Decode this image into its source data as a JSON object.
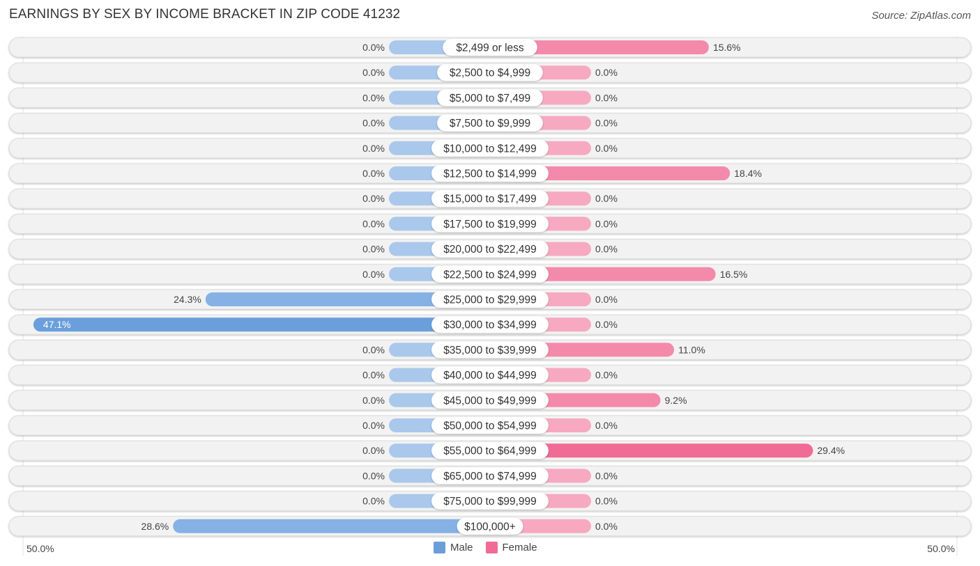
{
  "header": {
    "title": "EARNINGS BY SEX BY INCOME BRACKET IN ZIP CODE 41232",
    "source": "Source: ZipAtlas.com"
  },
  "axis": {
    "left_label": "50.0%",
    "right_label": "50.0%"
  },
  "legend": [
    {
      "label": "Male",
      "color": "#6a9fdb"
    },
    {
      "label": "Female",
      "color": "#f06b95"
    }
  ],
  "colors": {
    "male_light": "#a9c8eb",
    "male_dark": "#6a9fdb",
    "female_light": "#f7a9c2",
    "female_dark": "#f06b95",
    "row_bg": "#f2f2f2"
  },
  "chart_data": {
    "type": "bar",
    "orientation": "horizontal-diverging",
    "title": "EARNINGS BY SEX BY INCOME BRACKET IN ZIP CODE 41232",
    "xlim": [
      -50,
      50
    ],
    "x_tick_labels": [
      "50.0%",
      "50.0%"
    ],
    "legend_position": "bottom-center",
    "categories": [
      "$2,499 or less",
      "$2,500 to $4,999",
      "$5,000 to $7,499",
      "$7,500 to $9,999",
      "$10,000 to $12,499",
      "$12,500 to $14,999",
      "$15,000 to $17,499",
      "$17,500 to $19,999",
      "$20,000 to $22,499",
      "$22,500 to $24,999",
      "$25,000 to $29,999",
      "$30,000 to $34,999",
      "$35,000 to $39,999",
      "$40,000 to $44,999",
      "$45,000 to $49,999",
      "$50,000 to $54,999",
      "$55,000 to $64,999",
      "$65,000 to $74,999",
      "$75,000 to $99,999",
      "$100,000+"
    ],
    "series": [
      {
        "name": "Male",
        "values": [
          0.0,
          0.0,
          0.0,
          0.0,
          0.0,
          0.0,
          0.0,
          0.0,
          0.0,
          0.0,
          24.3,
          47.1,
          0.0,
          0.0,
          0.0,
          0.0,
          0.0,
          0.0,
          0.0,
          28.6
        ]
      },
      {
        "name": "Female",
        "values": [
          15.6,
          0.0,
          0.0,
          0.0,
          0.0,
          18.4,
          0.0,
          0.0,
          0.0,
          16.5,
          0.0,
          0.0,
          11.0,
          0.0,
          9.2,
          0.0,
          29.4,
          0.0,
          0.0,
          0.0
        ]
      }
    ]
  }
}
